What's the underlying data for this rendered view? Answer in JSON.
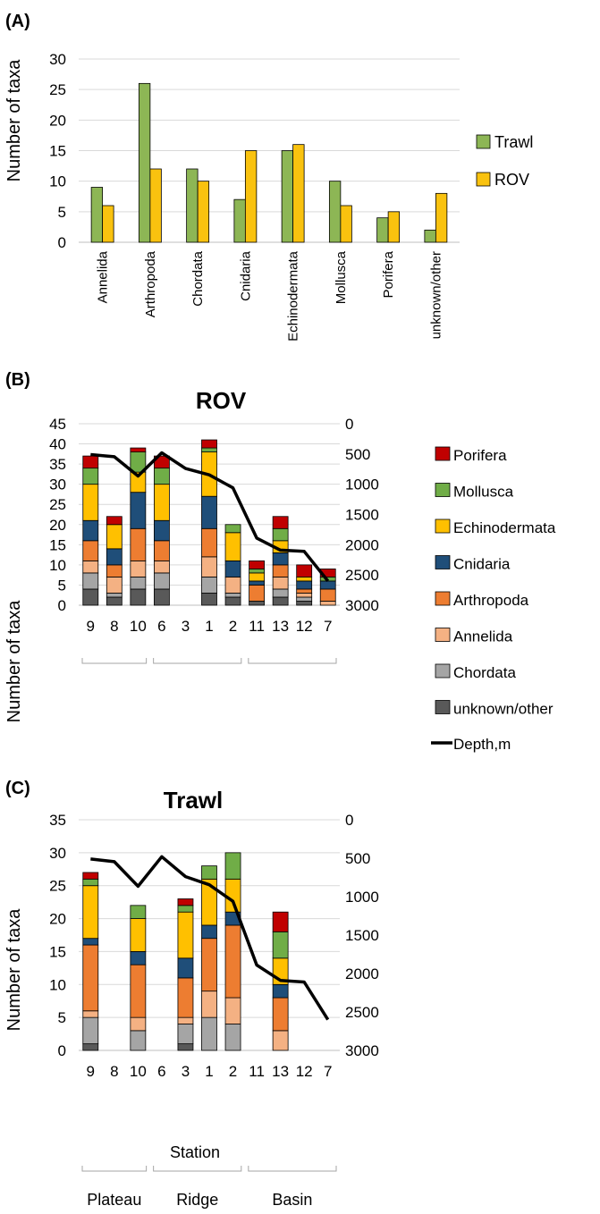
{
  "colors": {
    "Trawl": "#8db655",
    "ROV": "#f9c20f",
    "Porifera": "#c00000",
    "Mollusca": "#70ad47",
    "Echinodermata": "#ffc000",
    "Cnidaria": "#1f4e79",
    "Arthropoda": "#ed7d31",
    "Annelida": "#f4b183",
    "Chordata": "#a5a5a5",
    "unknown/other": "#595959",
    "depth_line": "#000000",
    "grid": "#d9d9d9",
    "axis_text": "#000000"
  },
  "chart_data": [
    {
      "panel": "(A)",
      "type": "bar",
      "title": "",
      "ylabel": "Number of taxa",
      "xlabel": "",
      "ylim": [
        0,
        30
      ],
      "yticks": [
        0,
        5,
        10,
        15,
        20,
        25,
        30
      ],
      "grid": true,
      "legend": "right",
      "categories": [
        "Annelida",
        "Arthropoda",
        "Chordata",
        "Cnidaria",
        "Echinodermata",
        "Mollusca",
        "Porifera",
        "unknown/other"
      ],
      "series": [
        {
          "name": "Trawl",
          "values": [
            9,
            26,
            12,
            7,
            15,
            10,
            4,
            2
          ]
        },
        {
          "name": "ROV",
          "values": [
            6,
            12,
            10,
            15,
            16,
            6,
            5,
            8
          ]
        }
      ]
    },
    {
      "panel": "(B)",
      "type": "bar",
      "stacked": true,
      "title": "ROV",
      "ylabel": "Number of taxa",
      "xlabel": "",
      "ylim": [
        0,
        45
      ],
      "yticks": [
        0,
        5,
        10,
        15,
        20,
        25,
        30,
        35,
        40,
        45
      ],
      "y2lim": [
        0,
        3000
      ],
      "y2ticks": [
        0,
        500,
        1000,
        1500,
        2000,
        2500,
        3000
      ],
      "y2_inverted": true,
      "grid": true,
      "legend": "right",
      "categories": [
        "9",
        "8",
        "10",
        "6",
        "3",
        "1",
        "2",
        "11",
        "13",
        "12",
        "7"
      ],
      "series": [
        {
          "name": "unknown/other",
          "values": [
            4,
            2,
            4,
            4,
            0,
            3,
            2,
            1,
            2,
            1,
            0
          ]
        },
        {
          "name": "Chordata",
          "values": [
            4,
            1,
            3,
            4,
            0,
            4,
            1,
            0,
            2,
            1,
            0
          ]
        },
        {
          "name": "Annelida",
          "values": [
            3,
            4,
            4,
            3,
            0,
            5,
            4,
            0,
            3,
            1,
            1
          ]
        },
        {
          "name": "Arthropoda",
          "values": [
            5,
            3,
            8,
            5,
            0,
            7,
            0,
            4,
            3,
            1,
            3
          ]
        },
        {
          "name": "Cnidaria",
          "values": [
            5,
            4,
            9,
            5,
            0,
            8,
            4,
            1,
            3,
            2,
            2
          ]
        },
        {
          "name": "Echinodermata",
          "values": [
            9,
            6,
            5,
            9,
            0,
            11,
            7,
            2,
            3,
            1,
            0
          ]
        },
        {
          "name": "Mollusca",
          "values": [
            4,
            0,
            5,
            4,
            0,
            1,
            2,
            1,
            3,
            0,
            1
          ]
        },
        {
          "name": "Porifera",
          "values": [
            3,
            2,
            1,
            3,
            0,
            2,
            0,
            2,
            3,
            3,
            2
          ]
        },
        {
          "name": "Depth,m",
          "type": "line",
          "axis": "y2",
          "values": [
            510,
            545,
            865,
            480,
            740,
            845,
            1060,
            1890,
            2090,
            2110,
            2600
          ]
        }
      ]
    },
    {
      "panel": "(C)",
      "type": "bar",
      "stacked": true,
      "title": "Trawl",
      "ylabel": "Number of taxa",
      "xlabel": "Station",
      "ylim": [
        0,
        35
      ],
      "yticks": [
        0,
        5,
        10,
        15,
        20,
        25,
        30,
        35
      ],
      "y2lim": [
        0,
        3000
      ],
      "y2ticks": [
        0,
        500,
        1000,
        1500,
        2000,
        2500,
        3000
      ],
      "y2_inverted": true,
      "grid": true,
      "categories": [
        "9",
        "8",
        "10",
        "6",
        "3",
        "1",
        "2",
        "11",
        "13",
        "12",
        "7"
      ],
      "groups": [
        {
          "label": "Plateau",
          "from": 0,
          "to": 2
        },
        {
          "label": "Ridge",
          "from": 3,
          "to": 6
        },
        {
          "label": "Basin",
          "from": 7,
          "to": 10
        }
      ],
      "series": [
        {
          "name": "unknown/other",
          "values": [
            1,
            0,
            0,
            0,
            1,
            0,
            0,
            0,
            0,
            0,
            0
          ]
        },
        {
          "name": "Chordata",
          "values": [
            4,
            0,
            3,
            0,
            3,
            5,
            4,
            0,
            0,
            0,
            0
          ]
        },
        {
          "name": "Annelida",
          "values": [
            1,
            0,
            2,
            0,
            1,
            4,
            4,
            0,
            3,
            0,
            0
          ]
        },
        {
          "name": "Arthropoda",
          "values": [
            10,
            0,
            8,
            0,
            6,
            8,
            11,
            0,
            5,
            0,
            0
          ]
        },
        {
          "name": "Cnidaria",
          "values": [
            1,
            0,
            2,
            0,
            3,
            2,
            2,
            0,
            2,
            0,
            0
          ]
        },
        {
          "name": "Echinodermata",
          "values": [
            8,
            0,
            5,
            0,
            7,
            7,
            5,
            0,
            4,
            0,
            0
          ]
        },
        {
          "name": "Mollusca",
          "values": [
            1,
            0,
            2,
            0,
            1,
            2,
            4,
            0,
            4,
            0,
            0
          ]
        },
        {
          "name": "Porifera",
          "values": [
            1,
            0,
            0,
            0,
            1,
            0,
            0,
            0,
            3,
            0,
            0
          ]
        },
        {
          "name": "Depth,m",
          "type": "line",
          "axis": "y2",
          "values": [
            510,
            545,
            865,
            480,
            740,
            845,
            1060,
            1890,
            2090,
            2110,
            2600
          ]
        }
      ]
    }
  ]
}
